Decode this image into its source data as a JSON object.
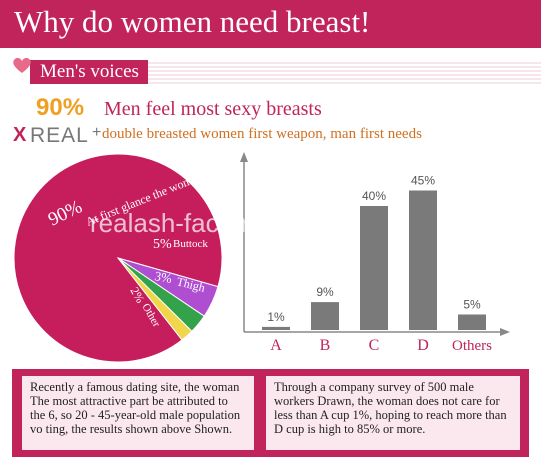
{
  "header": {
    "title": "Why do women need breast!"
  },
  "section": {
    "tag": "Men's voices"
  },
  "headline": {
    "percent": "90%",
    "text": "Men feel most sexy breasts"
  },
  "brand": {
    "x": "X",
    "real": "REAL",
    "plus": "+",
    "tagline": "double breasted women first weapon, man first needs"
  },
  "watermark": "realash-factory.com",
  "colors": {
    "accent": "#c0245a",
    "orange": "#f0a020",
    "bar": "#7a7a7a"
  },
  "chart_data": [
    {
      "type": "pie",
      "slices": [
        {
          "value": 90,
          "label": "90%",
          "text": "At first glance the woman's breast",
          "color": "#c61e5c"
        },
        {
          "value": 5,
          "label": "5%",
          "text": "Buttock",
          "color": "#b04ed1"
        },
        {
          "value": 3,
          "label": "3%",
          "text": "Thigh",
          "color": "#33a24a"
        },
        {
          "value": 2,
          "label": "2%",
          "text": "Other",
          "color": "#f1d54a"
        }
      ]
    },
    {
      "type": "bar",
      "categories": [
        "A",
        "B",
        "C",
        "D",
        "Others"
      ],
      "values": [
        1,
        9,
        40,
        45,
        5
      ],
      "labels": [
        "1%",
        "9%",
        "40%",
        "45%",
        "5%"
      ],
      "ylim": [
        0,
        50
      ],
      "grid": false
    }
  ],
  "notes": {
    "left": "Recently a famous dating site, the woman The most attractive part be attributed to the 6, so 20 - 45-year-old male population vo ting, the results shown above Shown.",
    "right": "Through a company survey of 500 male workers Drawn, the woman does not care for less than A cup 1%, hoping to reach more than D cup is high to 85% or more."
  }
}
